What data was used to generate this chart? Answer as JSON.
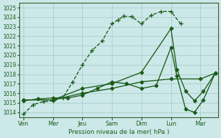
{
  "x_labels": [
    "Ven",
    "Mer",
    "Jeu",
    "Sam",
    "Dim",
    "Lun",
    "Mar"
  ],
  "xlabel": "Pression niveau de la mer( hPa )",
  "ylim": [
    1013.5,
    1025.5
  ],
  "xlim": [
    -0.15,
    6.6
  ],
  "yticks": [
    1014,
    1015,
    1016,
    1017,
    1018,
    1019,
    1020,
    1021,
    1022,
    1023,
    1024,
    1025
  ],
  "xtick_positions": [
    0,
    1,
    2,
    3,
    4,
    5,
    6
  ],
  "bg_color": "#cde8e8",
  "grid_color": "#a0c8c8",
  "line_color": "#1a5c1a",
  "line1": {
    "x": [
      0,
      0.33,
      0.67,
      1.0,
      1.33,
      1.67,
      2.0,
      2.33,
      2.67,
      3.0,
      3.2,
      3.4,
      3.67,
      4.0,
      4.33,
      4.67,
      5.0,
      5.33
    ],
    "y": [
      1013.8,
      1014.8,
      1015.1,
      1015.2,
      1015.5,
      1017.2,
      1019.0,
      1020.5,
      1021.5,
      1023.3,
      1023.7,
      1024.1,
      1024.05,
      1023.3,
      1024.2,
      1024.6,
      1024.6,
      1023.3
    ],
    "linestyle": "--",
    "marker": "+",
    "markersize": 4,
    "linewidth": 1.0
  },
  "line2": {
    "x": [
      0,
      0.5,
      1.0,
      1.5,
      2.0,
      2.5,
      3.0,
      3.5,
      4.0,
      4.5,
      5.0,
      5.2,
      5.5,
      5.8,
      6.1,
      6.5
    ],
    "y": [
      1015.2,
      1015.4,
      1015.5,
      1015.5,
      1015.8,
      1016.5,
      1017.2,
      1017.0,
      1016.5,
      1016.8,
      1020.8,
      1017.8,
      1014.3,
      1014.0,
      1015.3,
      1018.1
    ],
    "linestyle": "-",
    "marker": "D",
    "markersize": 2.5,
    "linewidth": 1.0
  },
  "line3": {
    "x": [
      0,
      1.0,
      2.0,
      3.0,
      4.0,
      5.0,
      5.2,
      5.5,
      5.8,
      6.1,
      6.5
    ],
    "y": [
      1015.3,
      1015.3,
      1016.5,
      1017.0,
      1018.2,
      1022.8,
      1018.5,
      1016.2,
      1015.2,
      1016.2,
      1018.1
    ],
    "linestyle": "-",
    "marker": "D",
    "markersize": 2.5,
    "linewidth": 1.0
  },
  "line4": {
    "x": [
      0,
      1.0,
      2.0,
      3.0,
      4.0,
      5.0,
      6.0,
      6.5
    ],
    "y": [
      1015.3,
      1015.3,
      1016.0,
      1016.5,
      1017.2,
      1017.5,
      1017.5,
      1018.1
    ],
    "linestyle": "-",
    "marker": "D",
    "markersize": 2.5,
    "linewidth": 1.0
  }
}
